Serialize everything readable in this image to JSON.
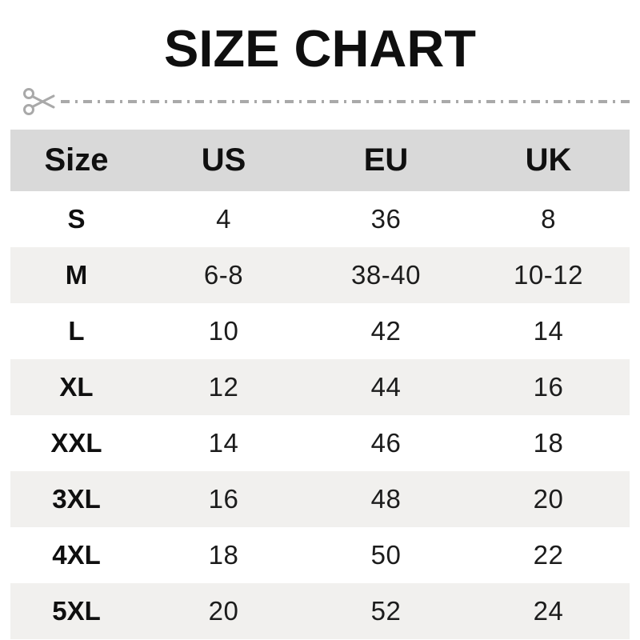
{
  "title": "SIZE CHART",
  "divider": {
    "icon": "scissors-icon"
  },
  "chart_data": {
    "type": "table",
    "title": "SIZE CHART",
    "columns": [
      "Size",
      "US",
      "EU",
      "UK"
    ],
    "rows": [
      [
        "S",
        "4",
        "36",
        "8"
      ],
      [
        "M",
        "6-8",
        "38-40",
        "10-12"
      ],
      [
        "L",
        "10",
        "42",
        "14"
      ],
      [
        "XL",
        "12",
        "44",
        "16"
      ],
      [
        "XXL",
        "14",
        "46",
        "18"
      ],
      [
        "3XL",
        "16",
        "48",
        "20"
      ],
      [
        "4XL",
        "18",
        "50",
        "22"
      ],
      [
        "5XL",
        "20",
        "52",
        "24"
      ]
    ],
    "layout_hints": {
      "header_background": "#d9d9d9",
      "alternating_row_background": "#f1f0ee",
      "first_column_bold": true
    }
  },
  "colors": {
    "header_bg": "#d9d9d9",
    "alt_row_bg": "#f1f0ee",
    "text": "#151515",
    "divider": "#a9a9a9"
  }
}
